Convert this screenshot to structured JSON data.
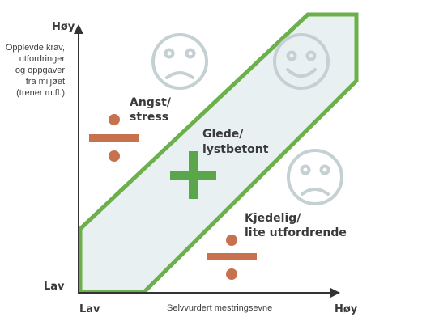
{
  "y_axis": {
    "high_label": "Høy",
    "low_label": "Lav",
    "title_lines": [
      "Opplevde krav,",
      "utfordringer",
      "og oppgaver",
      "fra miljøet",
      "(trener m.fl.)"
    ]
  },
  "x_axis": {
    "low_label": "Lav",
    "high_label": "Høy",
    "title": "Selvvurdert mestringsevne"
  },
  "zones": {
    "anxiety": {
      "lines": [
        "Angst/",
        "stress"
      ],
      "face": "sad-face-icon",
      "symbol": "division-sign"
    },
    "flow": {
      "lines": [
        "Glede/",
        "lystbetont"
      ],
      "face": "smiling-face-icon",
      "symbol": "plus-sign"
    },
    "boredom": {
      "lines": [
        "Kjedelig/",
        "lite utfordrende"
      ],
      "face": "sad-face-icon",
      "symbol": "division-sign"
    }
  },
  "colors": {
    "flow_border": "#6bb04b",
    "flow_fill": "#e8f0f2",
    "plus": "#5aa64a",
    "division": "#c8714e",
    "face": "#c5d0d2",
    "axis": "#333333"
  }
}
